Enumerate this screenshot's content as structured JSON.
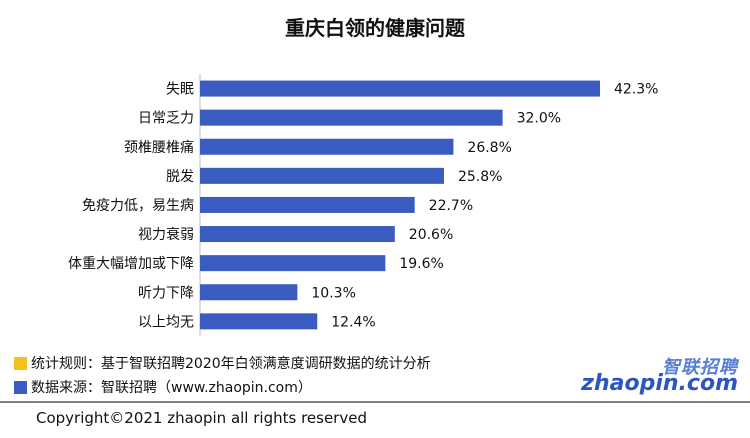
{
  "title": "重庆白领的健康问题",
  "chart_data": {
    "type": "bar",
    "orientation": "horizontal",
    "title": "重庆白领的健康问题",
    "categories": [
      "失眠",
      "日常乏力",
      "颈椎腰椎痛",
      "脱发",
      "免疫力低，易生病",
      "视力衰弱",
      "体重大幅增加或下降",
      "听力下降",
      "以上均无"
    ],
    "values": [
      42.3,
      32.0,
      26.8,
      25.8,
      22.7,
      20.6,
      19.6,
      10.3,
      12.4
    ],
    "labels": [
      "42.3%",
      "32.0%",
      "26.8%",
      "25.8%",
      "22.7%",
      "20.6%",
      "19.6%",
      "10.3%",
      "12.4%"
    ],
    "unit": "%",
    "bar_color": "#3a5bbf",
    "xlim": [
      0,
      42.3
    ],
    "grid": false,
    "legend": "none"
  },
  "notes": [
    {
      "text": "统计规则：基于智联招聘2020年白领满意度调研数据的统计分析",
      "color": "#f2c21b"
    },
    {
      "text": "数据来源：智联招聘（www.zhaopin.com）",
      "color": "#3a5bbf"
    }
  ],
  "logo": {
    "top": "智联招聘",
    "bottom": "zhaopin.com"
  },
  "copyright": "Copyright©2021 zhaopin all rights reserved"
}
